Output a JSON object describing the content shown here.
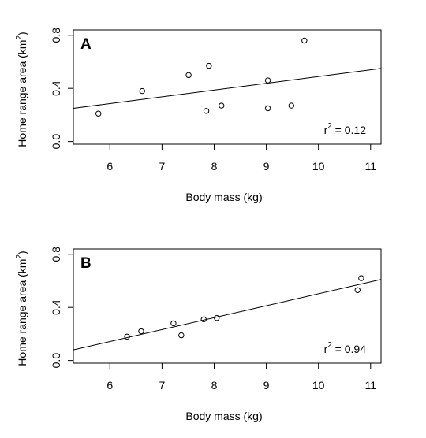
{
  "chart_data": [
    {
      "type": "scatter",
      "panel": "A",
      "xlabel": "Body mass (kg)",
      "ylabel": {
        "main": "Home range area (km",
        "sup": "2",
        "end": ")"
      },
      "xlim": [
        5.3,
        11.2
      ],
      "ylim": [
        -0.02,
        0.84
      ],
      "x_ticks": [
        6,
        7,
        8,
        9,
        10,
        11
      ],
      "y_ticks": [
        0.0,
        0.4,
        0.8
      ],
      "x_tick_labels": [
        "6",
        "7",
        "8",
        "9",
        "10",
        "11"
      ],
      "y_tick_labels": [
        "0.0",
        "0.4",
        "0.8"
      ],
      "points": [
        {
          "x": 5.78,
          "y": 0.21
        },
        {
          "x": 6.62,
          "y": 0.38
        },
        {
          "x": 7.51,
          "y": 0.5
        },
        {
          "x": 7.85,
          "y": 0.23
        },
        {
          "x": 7.9,
          "y": 0.57
        },
        {
          "x": 8.14,
          "y": 0.27
        },
        {
          "x": 9.03,
          "y": 0.46
        },
        {
          "x": 9.03,
          "y": 0.25
        },
        {
          "x": 9.48,
          "y": 0.27
        },
        {
          "x": 9.73,
          "y": 0.76
        }
      ],
      "fit_line": {
        "x": [
          5.3,
          11.2
        ],
        "y": [
          0.25,
          0.55
        ]
      },
      "annotation": {
        "base": "r",
        "sup": "2",
        "rest": " = 0.12"
      }
    },
    {
      "type": "scatter",
      "panel": "B",
      "xlabel": "Body mass (kg)",
      "ylabel": {
        "main": "Home range area (km",
        "sup": "2",
        "end": ")"
      },
      "xlim": [
        5.3,
        11.2
      ],
      "ylim": [
        -0.02,
        0.84
      ],
      "x_ticks": [
        6,
        7,
        8,
        9,
        10,
        11
      ],
      "y_ticks": [
        0.0,
        0.4,
        0.8
      ],
      "x_tick_labels": [
        "6",
        "7",
        "8",
        "9",
        "10",
        "11"
      ],
      "y_tick_labels": [
        "0.0",
        "0.4",
        "0.8"
      ],
      "points": [
        {
          "x": 6.33,
          "y": 0.18
        },
        {
          "x": 6.6,
          "y": 0.22
        },
        {
          "x": 7.22,
          "y": 0.28
        },
        {
          "x": 7.37,
          "y": 0.19
        },
        {
          "x": 7.8,
          "y": 0.31
        },
        {
          "x": 8.05,
          "y": 0.32
        },
        {
          "x": 10.75,
          "y": 0.53
        },
        {
          "x": 10.82,
          "y": 0.62
        }
      ],
      "fit_line": {
        "x": [
          5.3,
          11.2
        ],
        "y": [
          0.08,
          0.61
        ]
      },
      "annotation": {
        "base": "r",
        "sup": "2",
        "rest": " = 0.94"
      }
    }
  ]
}
